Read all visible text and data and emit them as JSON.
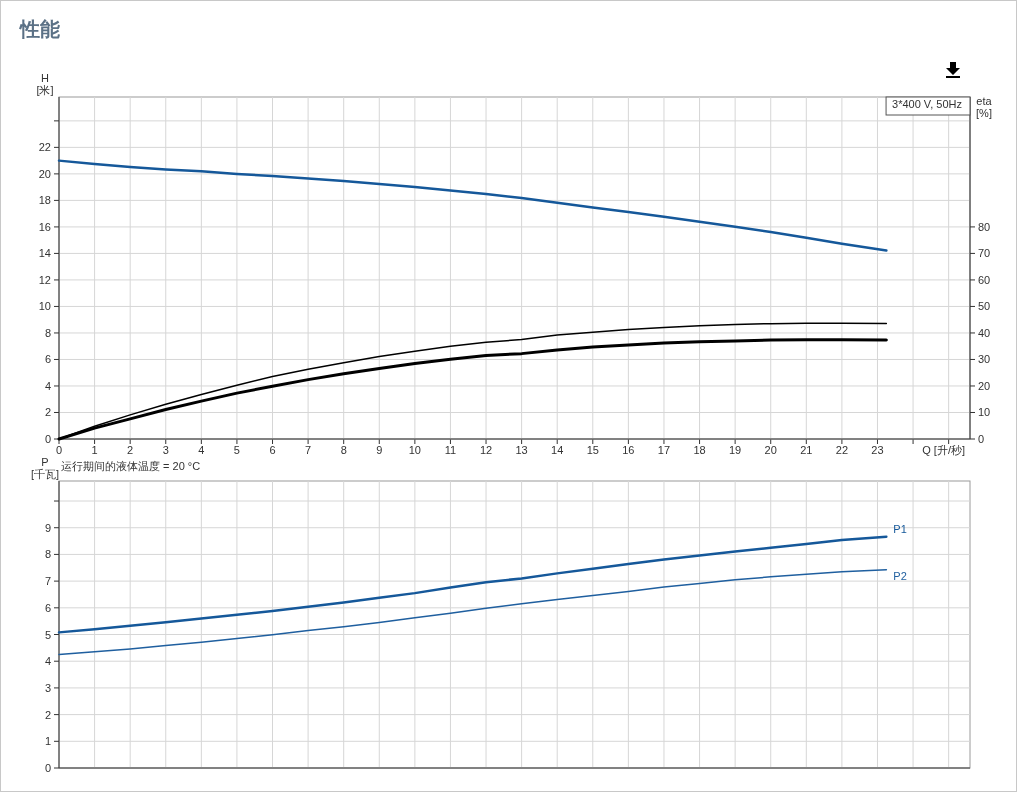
{
  "chart_data": [
    {
      "type": "line",
      "title": "性能",
      "xlabel": "Q [升/秒]",
      "ylabel": "H\n[米]",
      "y2label": "eta\n[%]",
      "annotations": [
        "运行期间的液体温度 = 20 °C",
        "3*400 V, 50Hz"
      ],
      "x": [
        0,
        1,
        2,
        3,
        4,
        5,
        6,
        7,
        8,
        9,
        10,
        11,
        12,
        13,
        14,
        15,
        16,
        17,
        18,
        19,
        20,
        21,
        22,
        23.25
      ],
      "series": [
        {
          "color": "#15589a",
          "values": [
            21.0,
            20.75,
            20.52,
            20.34,
            20.19,
            20.0,
            19.84,
            19.66,
            19.46,
            19.24,
            19.01,
            18.75,
            18.48,
            18.18,
            17.82,
            17.47,
            17.12,
            16.77,
            16.39,
            16.01,
            15.61,
            15.18,
            14.73,
            14.22
          ]
        },
        {
          "color": "#000000",
          "axis": "y2",
          "values": [
            0,
            4.8,
            9.1,
            13.1,
            16.8,
            20.3,
            23.6,
            26.3,
            28.8,
            31.1,
            33.1,
            35.0,
            36.5,
            37.5,
            39.2,
            40.3,
            41.3,
            42.1,
            42.7,
            43.2,
            43.5,
            43.7,
            43.7,
            43.6
          ]
        },
        {
          "color": "#000000",
          "axis": "y2",
          "values": [
            0,
            4.1,
            7.6,
            11.1,
            14.3,
            17.3,
            19.9,
            22.4,
            24.6,
            26.6,
            28.5,
            30.1,
            31.5,
            32.2,
            33.6,
            34.7,
            35.5,
            36.2,
            36.7,
            37.0,
            37.3,
            37.4,
            37.4,
            37.3
          ]
        }
      ],
      "xlim": [
        0,
        25.6
      ],
      "ylim": [
        0,
        25.8
      ],
      "y2lim": [
        0,
        129
      ],
      "xticks": [
        0,
        1,
        2,
        3,
        4,
        5,
        6,
        7,
        8,
        9,
        10,
        11,
        12,
        13,
        14,
        15,
        16,
        17,
        18,
        19,
        20,
        21,
        22,
        23,
        {
          "value": 24,
          "label": null
        },
        {
          "value": 25,
          "label": null
        }
      ],
      "yticks": [
        0,
        2,
        4,
        6,
        8,
        10,
        12,
        14,
        16,
        18,
        20,
        22,
        {
          "value": 24,
          "label": null
        }
      ],
      "y2ticks": [
        0,
        10,
        20,
        30,
        40,
        50,
        60,
        70,
        80
      ],
      "grid": true
    },
    {
      "type": "line",
      "ylabel": "P\n[千瓦]",
      "x": [
        0,
        1,
        2,
        3,
        4,
        5,
        6,
        7,
        8,
        9,
        10,
        11,
        12,
        13,
        14,
        15,
        16,
        17,
        18,
        19,
        20,
        21,
        22,
        23.25
      ],
      "series": [
        {
          "name": "P1",
          "color": "#15589a",
          "values": [
            5.08,
            5.2,
            5.33,
            5.46,
            5.6,
            5.74,
            5.88,
            6.04,
            6.2,
            6.38,
            6.55,
            6.76,
            6.96,
            7.1,
            7.29,
            7.46,
            7.64,
            7.81,
            7.96,
            8.11,
            8.25,
            8.39,
            8.54,
            8.66
          ]
        },
        {
          "name": "P2",
          "color": "#1f5f9f",
          "values": [
            4.25,
            4.35,
            4.46,
            4.59,
            4.71,
            4.85,
            4.99,
            5.15,
            5.29,
            5.45,
            5.63,
            5.8,
            5.98,
            6.15,
            6.31,
            6.46,
            6.61,
            6.78,
            6.91,
            7.05,
            7.16,
            7.26,
            7.35,
            7.43
          ]
        }
      ],
      "xlim": [
        0,
        25.6
      ],
      "ylim": [
        0,
        10.75
      ],
      "xticks": [
        0,
        1,
        2,
        3,
        4,
        5,
        6,
        7,
        8,
        9,
        10,
        11,
        12,
        13,
        14,
        15,
        16,
        17,
        18,
        19,
        20,
        21,
        22,
        23,
        24,
        25
      ],
      "yticks": [
        0,
        1,
        2,
        3,
        4,
        5,
        6,
        7,
        8,
        9,
        {
          "value": 10,
          "label": null
        }
      ],
      "grid": true,
      "tick_labels": "y"
    }
  ]
}
